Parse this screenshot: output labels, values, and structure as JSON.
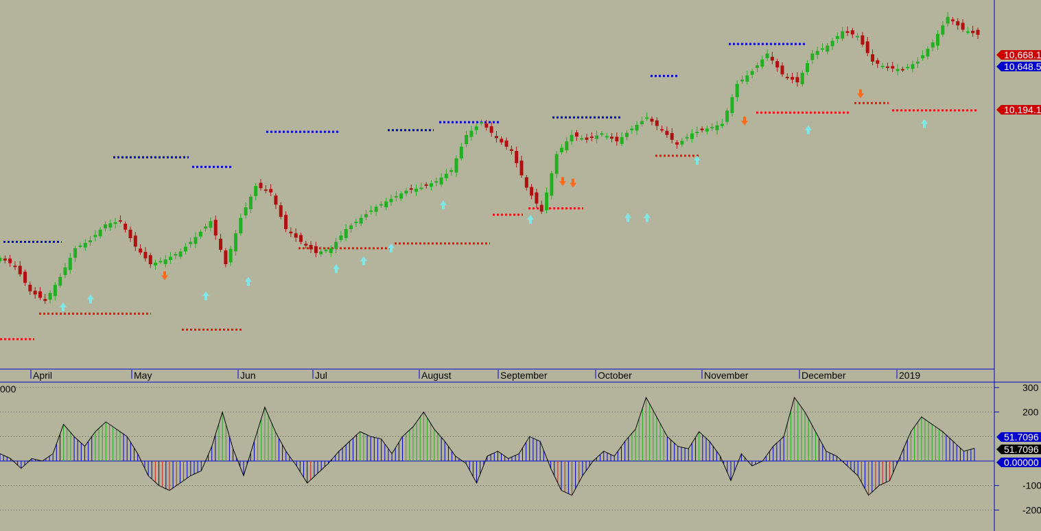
{
  "colors": {
    "background": "#b4b49c",
    "frame": "#0000cc",
    "candle_up": "#22b022",
    "candle_down": "#b01010",
    "resistance": "#0000cc",
    "support": "#ee1111",
    "arrow_up": "#7ee8e8",
    "arrow_down": "#ff6a1a",
    "osc_pos_up": "#22b022",
    "osc_neutral": "#0000cc",
    "osc_neg_down": "#cc2222",
    "osc_line": "#000000",
    "tag_red": "#cc0000",
    "tag_blue": "#0000cc",
    "tag_black": "#000000"
  },
  "price_tags": [
    {
      "label": "10,668.1",
      "value": 10668.1,
      "color": "tag_red"
    },
    {
      "label": "10,648.5",
      "value": 10648.5,
      "color": "tag_blue"
    },
    {
      "label": "10,194.1",
      "value": 10194.1,
      "color": "tag_red"
    }
  ],
  "month_labels": [
    "April",
    "May",
    "Jun",
    "Jul",
    "August",
    "September",
    "October",
    "November",
    "December",
    "2019"
  ],
  "osc_left_label": "000",
  "osc_axis": {
    "ticks": [
      {
        "label": "300",
        "value": 300
      },
      {
        "label": "200",
        "value": 200
      },
      {
        "label": "-100",
        "value": -100
      },
      {
        "label": "-200",
        "value": -200
      }
    ],
    "tags": [
      {
        "label": "51.7096",
        "value": 51.7096,
        "color": "tag_blue"
      },
      {
        "label": "51.7096",
        "value": 51.7096,
        "color": "tag_black"
      },
      {
        "label": "0.00000",
        "value": 0,
        "color": "tag_blue"
      }
    ]
  },
  "chart_data": [
    {
      "type": "candlestick",
      "title": "",
      "x_months": [
        "April",
        "May",
        "Jun",
        "Jul",
        "August",
        "September",
        "October",
        "November",
        "December",
        "2019"
      ],
      "price_range_approx": [
        8650,
        10800
      ],
      "close_path_approx": [
        9270,
        9220,
        9060,
        9000,
        9150,
        9330,
        9380,
        9480,
        9500,
        9340,
        9230,
        9260,
        9310,
        9400,
        9500,
        9230,
        9520,
        9720,
        9680,
        9450,
        9370,
        9300,
        9330,
        9450,
        9520,
        9590,
        9640,
        9690,
        9710,
        9750,
        9820,
        10040,
        10120,
        10020,
        9940,
        9710,
        9560,
        9920,
        10040,
        10010,
        10050,
        10000,
        10080,
        10150,
        10070,
        9980,
        10050,
        10080,
        10110,
        10360,
        10440,
        10550,
        10420,
        10370,
        10550,
        10600,
        10690,
        10660,
        10500,
        10460,
        10450,
        10500,
        10620,
        10780,
        10700,
        10668
      ],
      "resistance_levels": [
        9370,
        9900,
        9840,
        10060,
        10070,
        10120,
        10150,
        10410,
        10610
      ],
      "support_levels": [
        8760,
        8920,
        8820,
        9330,
        9360,
        9540,
        9580,
        9910,
        10180,
        10240,
        10194
      ]
    },
    {
      "type": "bar",
      "title": "",
      "axis_ticks": [
        300,
        200,
        -100,
        -200
      ],
      "current_value": 51.7096,
      "zero_line": 0,
      "values_approx": [
        30,
        10,
        -30,
        10,
        0,
        30,
        150,
        100,
        60,
        120,
        160,
        130,
        100,
        30,
        -60,
        -100,
        -120,
        -90,
        -60,
        -40,
        60,
        200,
        50,
        -60,
        80,
        220,
        120,
        40,
        -20,
        -90,
        -50,
        -10,
        40,
        80,
        120,
        100,
        90,
        30,
        100,
        140,
        200,
        130,
        80,
        20,
        -10,
        -90,
        20,
        40,
        10,
        30,
        100,
        80,
        -30,
        -120,
        -140,
        -60,
        0,
        40,
        20,
        80,
        130,
        260,
        180,
        100,
        60,
        50,
        120,
        80,
        20,
        -80,
        30,
        -20,
        0,
        60,
        100,
        260,
        200,
        120,
        40,
        20,
        -20,
        -60,
        -140,
        -100,
        -80,
        20,
        120,
        180,
        150,
        120,
        80,
        40,
        51.7
      ]
    }
  ]
}
